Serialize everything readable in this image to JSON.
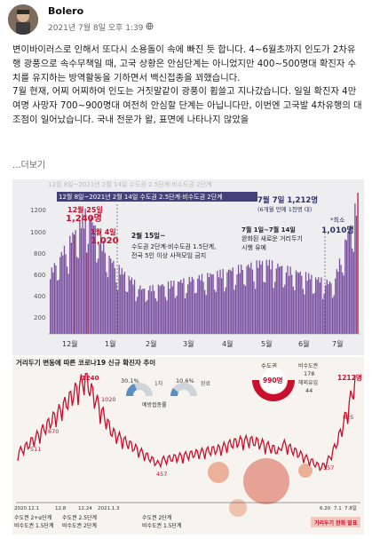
{
  "post": {
    "author": "Bolero",
    "timestamp": "2021년 7월 8일 오후 1:39",
    "paragraphs": [
      "변이바이러스로 인해서 또다시 소용돌이 속에 빠진 듯 합니다. 4~6월초까지 인도가 2차유행 광풍으로 속수무책일 때, 고국 상황은 안심단계는 아니었지만 400~500명대 확진자 수치를 유지하는 방역활동을 기하면서 백신접종을 꾀했습니다.",
      "7월 현재, 어찌 어찌하여 인도는 거짓말같이 광풍이 휩쓸고 지나갔습니다. 일일 확진자 4만여명 사망자 700~900명대 여전히 안심할 단계는 아닙니다만, 이번엔 고국발 4차유행의 대조점이 일어났습니다. 국내 전문가 왈, 표면에 나타나지 않았을"
    ],
    "see_more": "...더보기"
  },
  "chart1": {
    "period_label": "12월 8일~2021년 2월 14일 수도권 2.5단계·비수도권 2단계",
    "top_faded_label": "12월 8일~2021년 2월 14일 수도권 2.5단계·비수도권 2단계",
    "annot_dec25_date": "12월 25일",
    "annot_dec25_value": "1,240명",
    "annot_jan4_date": "1월 4일",
    "annot_jan4_value": "1,020",
    "annot_feb15_1": "2월 15일~",
    "annot_feb15_2": "수도권 2단계·비수도권 1.5단계,",
    "annot_feb15_3": "전국 5인 이상 사적모임 금지",
    "annot_jul1_1": "7월 1일~7월 14일",
    "annot_jul1_2": "완화된 새로운 거리두기",
    "annot_jul1_3": "시행 유예",
    "annot_jul7_1": "7월 7일 1,212명",
    "annot_jul7_2": "(6개월 만에 1천명 대)",
    "annot_jul7_3": "*최소",
    "annot_jul7_4": "1,010명",
    "ytick_labels": [
      "1200",
      "1000",
      "800",
      "600",
      "400",
      "200"
    ],
    "month_labels": [
      "12월",
      "1월",
      "2월",
      "3월",
      "4월",
      "5월",
      "6월",
      "7월"
    ],
    "bar_color": "#7a4fa0",
    "highlight_color": "#c8102e"
  },
  "chart2": {
    "title": "거리두기 변동에 따른 코로나19 신규 확진자 추이",
    "donut_capital_pct": "30.1%",
    "donut_first_label": "1차",
    "donut_complete_pct": "10.6%",
    "donut_complete_label": "완료",
    "vaccination_label": "예방접종률",
    "capital_area_label": "수도권",
    "capital_area_value": "990명",
    "noncapital_label": "비수도권",
    "noncapital_value": "178",
    "overseas_label": "해외유입",
    "overseas_value": "44",
    "peak_label": "1240",
    "v1020": "1020",
    "v670": "670",
    "v511": "511",
    "v457": "457",
    "v357": "357",
    "v825": "825",
    "v1212": "1212명",
    "x_dates": [
      "2020.12.1",
      "12.8",
      "12.24",
      "2021.1.3",
      "6.20",
      "7.1",
      "7.8일"
    ],
    "stage1_a": "수도권 2+α단계",
    "stage1_b": "비수도권 1.5단계",
    "stage2_a": "수도권 2.5단계",
    "stage2_b": "비수도권 2단계",
    "stage3_a": "수도권 2단계",
    "stage3_b": "비수도권 1.5단계",
    "release_label": "거리두기 완화 발표",
    "line_color": "#c8102e",
    "accent_color": "#e27a52"
  }
}
